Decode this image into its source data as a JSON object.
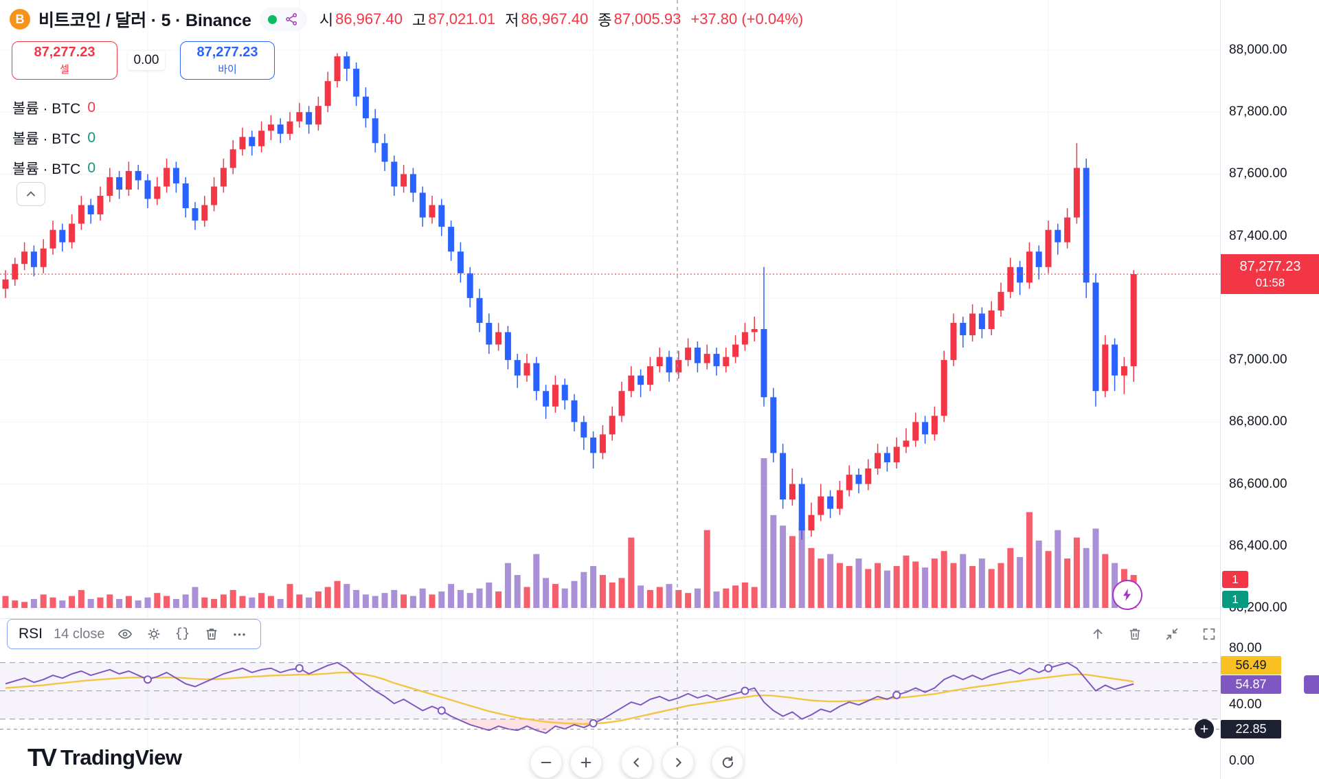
{
  "header": {
    "title": "비트코인 / 달러 · 5 · Binance",
    "open_label": "시",
    "open": "86,967.40",
    "high_label": "고",
    "high": "87,021.01",
    "low_label": "저",
    "low": "86,967.40",
    "close_label": "종",
    "close": "87,005.93",
    "change": "+37.80 (+0.04%)"
  },
  "trade": {
    "sell_price": "87,277.23",
    "sell_label": "셀",
    "spread": "0.00",
    "buy_price": "87,277.23",
    "buy_label": "바이"
  },
  "legend": {
    "rows": [
      {
        "label": "볼륨 · BTC",
        "value": "0",
        "color": "#f23645"
      },
      {
        "label": "볼륨 · BTC",
        "value": "0",
        "color": "#089981"
      },
      {
        "label": "볼륨 · BTC",
        "value": "0",
        "color": "#089981"
      }
    ]
  },
  "price_label": {
    "price": "87,277.23",
    "countdown": "01:58"
  },
  "price_scale": {
    "labels": [
      "88,000.00",
      "87,800.00",
      "87,600.00",
      "87,400.00",
      "87,000.00",
      "86,800.00",
      "86,600.00",
      "86,400.00",
      "86,200.00"
    ]
  },
  "vol_badges": [
    {
      "text": "1",
      "bg": "#f23645"
    },
    {
      "text": "1",
      "bg": "#089981"
    }
  ],
  "rsi_panel": {
    "title": "RSI",
    "params": "14 close",
    "scale_labels": [
      "80.00",
      "40.00",
      "0.00"
    ],
    "ma_value": "56.49",
    "rsi_value": "54.87",
    "crosshair_value": "22.85"
  },
  "footer": {
    "brand": "TradingView"
  },
  "colors": {
    "up": "#f23645",
    "down": "#2962ff",
    "vol_up": "#f23645",
    "vol_down": "#9575cd",
    "rsi": "#7e57c2",
    "rsi_ma": "#f4c542",
    "teal": "#089981",
    "badge_yellow": "#f8c021",
    "badge_black": "#1c2030"
  },
  "chart_data": {
    "type": "candlestick",
    "title": "비트코인 / 달러 · 5 · Binance",
    "interval": "5",
    "exchange": "Binance",
    "price_axis": {
      "min": 86200,
      "max": 88000,
      "tick": 200
    },
    "current_price": 87277.23,
    "candles": [
      [
        87230,
        87290,
        87200,
        87260,
        8
      ],
      [
        87260,
        87330,
        87240,
        87310,
        5
      ],
      [
        87310,
        87380,
        87290,
        87350,
        4
      ],
      [
        87350,
        87370,
        87270,
        87300,
        6
      ],
      [
        87300,
        87390,
        87280,
        87360,
        9
      ],
      [
        87360,
        87450,
        87340,
        87420,
        7
      ],
      [
        87420,
        87440,
        87350,
        87380,
        5
      ],
      [
        87380,
        87470,
        87360,
        87440,
        8
      ],
      [
        87440,
        87530,
        87420,
        87500,
        12
      ],
      [
        87500,
        87520,
        87440,
        87470,
        6
      ],
      [
        87470,
        87560,
        87450,
        87530,
        7
      ],
      [
        87530,
        87620,
        87510,
        87590,
        9
      ],
      [
        87590,
        87610,
        87520,
        87550,
        6
      ],
      [
        87550,
        87640,
        87530,
        87610,
        8
      ],
      [
        87610,
        87630,
        87550,
        87580,
        5
      ],
      [
        87580,
        87600,
        87490,
        87520,
        7
      ],
      [
        87520,
        87590,
        87500,
        87560,
        10
      ],
      [
        87560,
        87650,
        87540,
        87620,
        8
      ],
      [
        87620,
        87640,
        87540,
        87570,
        6
      ],
      [
        87570,
        87590,
        87460,
        87490,
        9
      ],
      [
        87490,
        87510,
        87420,
        87450,
        14
      ],
      [
        87450,
        87530,
        87430,
        87500,
        7
      ],
      [
        87500,
        87590,
        87480,
        87560,
        6
      ],
      [
        87560,
        87650,
        87540,
        87620,
        9
      ],
      [
        87620,
        87710,
        87600,
        87680,
        12
      ],
      [
        87680,
        87750,
        87660,
        87720,
        8
      ],
      [
        87720,
        87740,
        87660,
        87690,
        7
      ],
      [
        87690,
        87770,
        87670,
        87740,
        10
      ],
      [
        87740,
        87790,
        87710,
        87760,
        8
      ],
      [
        87760,
        87780,
        87700,
        87730,
        6
      ],
      [
        87730,
        87800,
        87710,
        87770,
        16
      ],
      [
        87770,
        87830,
        87750,
        87800,
        9
      ],
      [
        87800,
        87820,
        87730,
        87760,
        7
      ],
      [
        87760,
        87850,
        87740,
        87820,
        11
      ],
      [
        87820,
        87930,
        87800,
        87900,
        14
      ],
      [
        87900,
        87990,
        87880,
        87980,
        18
      ],
      [
        87980,
        87995,
        87900,
        87940,
        16
      ],
      [
        87940,
        87960,
        87820,
        87850,
        12
      ],
      [
        87850,
        87880,
        87750,
        87780,
        9
      ],
      [
        87780,
        87810,
        87670,
        87700,
        8
      ],
      [
        87700,
        87730,
        87610,
        87640,
        10
      ],
      [
        87640,
        87660,
        87530,
        87560,
        12
      ],
      [
        87560,
        87630,
        87540,
        87600,
        9
      ],
      [
        87600,
        87620,
        87510,
        87540,
        8
      ],
      [
        87540,
        87560,
        87430,
        87460,
        13
      ],
      [
        87460,
        87530,
        87440,
        87500,
        9
      ],
      [
        87500,
        87520,
        87400,
        87430,
        11
      ],
      [
        87430,
        87450,
        87320,
        87350,
        16
      ],
      [
        87350,
        87380,
        87250,
        87280,
        12
      ],
      [
        87280,
        87300,
        87170,
        87200,
        10
      ],
      [
        87200,
        87230,
        87090,
        87120,
        13
      ],
      [
        87120,
        87150,
        87020,
        87050,
        17
      ],
      [
        87050,
        87120,
        87030,
        87090,
        11
      ],
      [
        87090,
        87110,
        86970,
        87000,
        30
      ],
      [
        87000,
        87020,
        86910,
        86950,
        22
      ],
      [
        86950,
        87020,
        86930,
        86990,
        14
      ],
      [
        86990,
        87010,
        86870,
        86900,
        36
      ],
      [
        86900,
        86920,
        86810,
        86850,
        20
      ],
      [
        86850,
        86950,
        86830,
        86920,
        16
      ],
      [
        86920,
        86940,
        86840,
        86870,
        13
      ],
      [
        86870,
        86890,
        86770,
        86800,
        18
      ],
      [
        86800,
        86820,
        86710,
        86750,
        24
      ],
      [
        86750,
        86770,
        86650,
        86700,
        28
      ],
      [
        86700,
        86790,
        86680,
        86760,
        22
      ],
      [
        86760,
        86850,
        86740,
        86820,
        17
      ],
      [
        86820,
        86930,
        86800,
        86900,
        20
      ],
      [
        86900,
        86980,
        86880,
        86950,
        47
      ],
      [
        86950,
        86970,
        86880,
        86920,
        15
      ],
      [
        86920,
        87010,
        86900,
        86980,
        12
      ],
      [
        86980,
        87040,
        86960,
        87010,
        14
      ],
      [
        87010,
        87030,
        86930,
        86960,
        16
      ],
      [
        86960,
        87030,
        86940,
        87000,
        12
      ],
      [
        87000,
        87070,
        86980,
        87040,
        10
      ],
      [
        87040,
        87060,
        86960,
        86990,
        13
      ],
      [
        86990,
        87050,
        86970,
        87020,
        52
      ],
      [
        87020,
        87040,
        86950,
        86980,
        11
      ],
      [
        86980,
        87040,
        86960,
        87010,
        13
      ],
      [
        87010,
        87080,
        86990,
        87050,
        15
      ],
      [
        87050,
        87120,
        87030,
        87090,
        17
      ],
      [
        87090,
        87140,
        87060,
        87100,
        14
      ],
      [
        87100,
        87300,
        86850,
        86880,
        100
      ],
      [
        86880,
        86910,
        86670,
        86700,
        62
      ],
      [
        86700,
        86730,
        86520,
        86550,
        55
      ],
      [
        86550,
        86650,
        86530,
        86600,
        48
      ],
      [
        86600,
        86620,
        86420,
        86450,
        57
      ],
      [
        86450,
        86540,
        86430,
        86500,
        40
      ],
      [
        86500,
        86600,
        86480,
        86560,
        33
      ],
      [
        86560,
        86580,
        86490,
        86520,
        36
      ],
      [
        86520,
        86610,
        86500,
        86580,
        30
      ],
      [
        86580,
        86660,
        86560,
        86630,
        28
      ],
      [
        86630,
        86650,
        86570,
        86600,
        33
      ],
      [
        86600,
        86680,
        86580,
        86650,
        26
      ],
      [
        86650,
        86730,
        86630,
        86700,
        30
      ],
      [
        86700,
        86720,
        86640,
        86670,
        25
      ],
      [
        86670,
        86750,
        86650,
        86720,
        28
      ],
      [
        86720,
        86780,
        86700,
        86740,
        35
      ],
      [
        86740,
        86830,
        86720,
        86800,
        31
      ],
      [
        86800,
        86820,
        86730,
        86760,
        27
      ],
      [
        86760,
        86850,
        86740,
        86820,
        33
      ],
      [
        86820,
        87030,
        86800,
        87000,
        38
      ],
      [
        87000,
        87150,
        86980,
        87120,
        30
      ],
      [
        87120,
        87140,
        87040,
        87080,
        36
      ],
      [
        87080,
        87180,
        87060,
        87150,
        28
      ],
      [
        87150,
        87170,
        87070,
        87100,
        33
      ],
      [
        87100,
        87190,
        87080,
        87160,
        26
      ],
      [
        87160,
        87250,
        87140,
        87220,
        30
      ],
      [
        87220,
        87330,
        87200,
        87300,
        40
      ],
      [
        87300,
        87320,
        87210,
        87250,
        34
      ],
      [
        87250,
        87380,
        87230,
        87350,
        64
      ],
      [
        87350,
        87370,
        87260,
        87300,
        45
      ],
      [
        87300,
        87450,
        87280,
        87420,
        38
      ],
      [
        87420,
        87440,
        87340,
        87380,
        52
      ],
      [
        87380,
        87490,
        87360,
        87460,
        33
      ],
      [
        87460,
        87700,
        87440,
        87620,
        47
      ],
      [
        87620,
        87650,
        87200,
        87250,
        40
      ],
      [
        87250,
        87280,
        86850,
        86900,
        53
      ],
      [
        86900,
        87080,
        86880,
        87050,
        36
      ],
      [
        87050,
        87070,
        86900,
        86950,
        30
      ],
      [
        86950,
        87010,
        86890,
        86980,
        26
      ],
      [
        86980,
        87290,
        86930,
        87277.23,
        22
      ]
    ],
    "rsi": {
      "period_source": "14 close",
      "range": [
        0,
        80
      ],
      "levels": [
        70,
        50,
        30
      ],
      "crosshair": 22.85,
      "last": 54.87,
      "ma_last": 56.49,
      "markers": [
        15,
        31,
        46,
        62,
        78,
        94,
        110
      ],
      "values": [
        55,
        57,
        59,
        56,
        58,
        61,
        59,
        62,
        64,
        61,
        63,
        65,
        62,
        64,
        61,
        58,
        60,
        63,
        59,
        55,
        53,
        56,
        59,
        62,
        64,
        66,
        63,
        65,
        66,
        63,
        65,
        66,
        62,
        65,
        68,
        70,
        66,
        60,
        55,
        50,
        46,
        41,
        44,
        40,
        36,
        39,
        36,
        32,
        29,
        26,
        24,
        22,
        25,
        23,
        22,
        25,
        22,
        20,
        25,
        23,
        26,
        24,
        27,
        30,
        34,
        38,
        42,
        40,
        44,
        46,
        43,
        45,
        48,
        45,
        47,
        44,
        46,
        48,
        50,
        52,
        42,
        36,
        32,
        35,
        30,
        33,
        37,
        35,
        39,
        42,
        40,
        43,
        46,
        44,
        47,
        49,
        52,
        49,
        52,
        58,
        61,
        58,
        61,
        58,
        61,
        63,
        65,
        62,
        66,
        63,
        66,
        68,
        70,
        66,
        58,
        50,
        54,
        51,
        53,
        54.87
      ],
      "ma": [
        52,
        52.5,
        53,
        53.5,
        54,
        54.8,
        55.5,
        56.2,
        57,
        57.5,
        58,
        58.5,
        59,
        59.3,
        59.5,
        59.4,
        59.3,
        59.5,
        59.4,
        59,
        58.5,
        58.2,
        58.2,
        58.5,
        59,
        59.5,
        60,
        60.3,
        60.8,
        61,
        61.2,
        61.5,
        61.5,
        61.8,
        62.2,
        62.8,
        63,
        62.5,
        61.5,
        60,
        58,
        55.5,
        53.5,
        51.5,
        49.5,
        47.5,
        45.5,
        43.5,
        41.5,
        39.5,
        37.5,
        35.5,
        34,
        32.5,
        31,
        30,
        29,
        28,
        27.5,
        27,
        26.8,
        26.5,
        26.8,
        27.2,
        28,
        29,
        30.5,
        32,
        33.5,
        35,
        36.5,
        38,
        39.5,
        40.5,
        41.5,
        42.5,
        43.5,
        44.5,
        45.5,
        46.5,
        46.8,
        46.5,
        45.8,
        45,
        44,
        43.2,
        42.8,
        42.5,
        42.5,
        42.8,
        43,
        43.5,
        44,
        44.5,
        45,
        45.5,
        46.2,
        47,
        47.8,
        49,
        50.2,
        51.3,
        52.4,
        53.3,
        54.2,
        55.2,
        56.2,
        57,
        58,
        58.8,
        59.6,
        60.4,
        61.2,
        61.8,
        61.5,
        60.5,
        59.5,
        58.5,
        57.5,
        56.49
      ]
    }
  }
}
